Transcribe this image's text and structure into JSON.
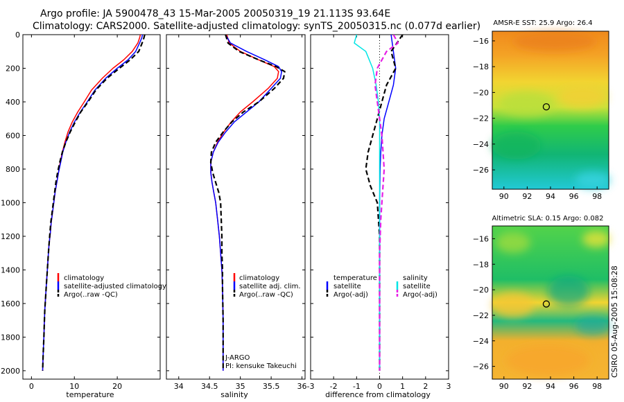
{
  "header": {
    "title_line1": "Argo profile: JA 5900478_43 15-Mar-2005 20050319_19 21.113S 93.64E",
    "title_line2": "Climatology: CARS2000. Satellite-adjusted climatology: synTS_20050315.nc (0.077d earlier)",
    "stamp": "CSIRO 05-Aug-2005 15:08:28"
  },
  "colors": {
    "climatology": "#ff0000",
    "satellite": "#0000ff",
    "argo": "#000000",
    "satellite_salinity": "#00e5e5",
    "argo_adj_salinity": "#e61ee6"
  },
  "chart_data": [
    {
      "type": "line",
      "xlabel": "temperature",
      "ylabel": "",
      "xlim": [
        -2,
        30
      ],
      "ylim": [
        2050,
        0
      ],
      "y_reversed": true,
      "xticks": [
        0,
        10,
        20
      ],
      "yticks": [
        0,
        200,
        400,
        600,
        800,
        1000,
        1200,
        1400,
        1600,
        1800,
        2000
      ],
      "legend": [
        "climatology",
        "satellite-adjusted climatology",
        "Argo(..raw -QC)"
      ],
      "legend_position": "lower-right",
      "series": [
        {
          "name": "climatology",
          "color": "#ff0000",
          "dash": "solid",
          "x": [
            25.4,
            25.2,
            24.8,
            23.5,
            21.5,
            19,
            16.5,
            14,
            12.3,
            10.8,
            9.5,
            8.5,
            7.8,
            7.2,
            6.7,
            6.3,
            5.9,
            5.5,
            5.2,
            4.9,
            4.6,
            4.4,
            4.1,
            3.9,
            3.7,
            3.5,
            3.3,
            3.1,
            3.0,
            2.9,
            2.8,
            2.7,
            2.65,
            2.6
          ],
          "y": [
            0,
            20,
            50,
            100,
            150,
            200,
            260,
            330,
            400,
            460,
            520,
            580,
            640,
            700,
            760,
            820,
            880,
            940,
            1000,
            1060,
            1120,
            1180,
            1250,
            1320,
            1400,
            1480,
            1560,
            1640,
            1720,
            1800,
            1860,
            1920,
            1960,
            2000
          ]
        },
        {
          "name": "satellite-adjusted climatology",
          "color": "#0000ff",
          "dash": "solid",
          "x": [
            25.9,
            25.7,
            25.2,
            24.3,
            22.5,
            20,
            17.3,
            14.8,
            13.0,
            11.4,
            10.0,
            8.9,
            8.0,
            7.3,
            6.8,
            6.3,
            5.9,
            5.5,
            5.2,
            4.9,
            4.6,
            4.4,
            4.1,
            3.9,
            3.7,
            3.5,
            3.3,
            3.1,
            3.0,
            2.9,
            2.8,
            2.7,
            2.65,
            2.6
          ],
          "y": [
            0,
            20,
            50,
            100,
            150,
            200,
            260,
            330,
            400,
            460,
            520,
            580,
            640,
            700,
            760,
            820,
            880,
            940,
            1000,
            1060,
            1120,
            1180,
            1250,
            1320,
            1400,
            1480,
            1560,
            1640,
            1720,
            1800,
            1860,
            1920,
            1960,
            2000
          ]
        },
        {
          "name": "Argo(..raw -QC)",
          "color": "#000000",
          "dash": "dashed",
          "x": [
            26.4,
            26.2,
            25.8,
            25.0,
            23.0,
            20.5,
            17.6,
            15.0,
            13.2,
            11.5,
            10.2,
            9.0,
            8.0,
            7.2,
            6.6,
            6.1,
            5.7,
            5.4,
            5.1,
            4.8,
            4.5,
            4.3,
            4.1,
            3.9,
            3.7,
            3.5,
            3.3,
            3.1,
            3.0,
            2.9,
            2.8,
            2.7,
            2.65,
            2.6
          ],
          "y": [
            0,
            20,
            50,
            100,
            150,
            200,
            260,
            330,
            400,
            460,
            520,
            580,
            640,
            700,
            760,
            820,
            880,
            940,
            1000,
            1060,
            1120,
            1180,
            1250,
            1320,
            1400,
            1480,
            1560,
            1640,
            1720,
            1800,
            1860,
            1920,
            1960,
            2000
          ]
        }
      ]
    },
    {
      "type": "line",
      "xlabel": "salinity",
      "ylabel": "",
      "xlim": [
        33.8,
        36.05
      ],
      "ylim": [
        2050,
        0
      ],
      "y_reversed": true,
      "xticks": [
        34,
        34.5,
        35,
        35.5,
        36
      ],
      "yticks": [],
      "legend": [
        "climatology",
        "satellite adj. clim.",
        "Argo(..raw -QC)"
      ],
      "legend_position": "lower-right",
      "annotations": [
        "J-ARGO",
        "PI: kensuke Takeuchi"
      ],
      "series": [
        {
          "name": "climatology",
          "color": "#ff0000",
          "dash": "solid",
          "x": [
            34.78,
            34.82,
            35.0,
            35.3,
            35.55,
            35.62,
            35.6,
            35.45,
            35.2,
            35.0,
            34.85,
            34.73,
            34.63,
            34.56,
            34.52,
            34.52,
            34.54,
            34.57,
            34.6,
            34.63,
            34.66,
            34.68,
            34.7,
            34.71,
            34.72,
            34.72
          ],
          "y": [
            0,
            50,
            100,
            150,
            190,
            220,
            260,
            320,
            400,
            460,
            520,
            580,
            640,
            700,
            760,
            820,
            880,
            940,
            1000,
            1100,
            1200,
            1300,
            1400,
            1500,
            1700,
            2000
          ]
        },
        {
          "name": "satellite adj. clim.",
          "color": "#0000ff",
          "dash": "solid",
          "x": [
            34.76,
            34.84,
            35.1,
            35.4,
            35.62,
            35.67,
            35.65,
            35.5,
            35.3,
            35.1,
            34.9,
            34.76,
            34.64,
            34.56,
            34.52,
            34.52,
            34.54,
            34.57,
            34.6,
            34.63,
            34.66,
            34.68,
            34.7,
            34.71,
            34.72,
            34.72
          ],
          "y": [
            0,
            50,
            100,
            150,
            190,
            220,
            260,
            320,
            400,
            460,
            520,
            580,
            640,
            700,
            760,
            820,
            880,
            940,
            1000,
            1100,
            1200,
            1300,
            1400,
            1500,
            1700,
            2000
          ]
        },
        {
          "name": "Argo(..raw -QC)",
          "color": "#000000",
          "dash": "dashed",
          "x": [
            34.76,
            34.8,
            34.98,
            35.3,
            35.58,
            35.72,
            35.7,
            35.55,
            35.3,
            35.05,
            34.86,
            34.72,
            34.6,
            34.53,
            34.52,
            34.55,
            34.6,
            34.65,
            34.68,
            34.69,
            34.7,
            34.7,
            34.71,
            34.71,
            34.72,
            34.72
          ],
          "y": [
            0,
            50,
            100,
            150,
            190,
            220,
            260,
            320,
            400,
            460,
            520,
            580,
            640,
            700,
            760,
            820,
            880,
            940,
            1000,
            1100,
            1200,
            1300,
            1400,
            1500,
            1700,
            2000
          ]
        }
      ]
    },
    {
      "type": "line",
      "xlabel": "difference from climatology",
      "ylabel": "",
      "xlim": [
        -3,
        3
      ],
      "ylim": [
        2050,
        0
      ],
      "y_reversed": true,
      "xticks": [
        -3,
        -2,
        -1,
        0,
        1,
        2,
        3
      ],
      "yticks": [],
      "reference_line": {
        "x": 0,
        "style": "dotted"
      },
      "legend_groups": [
        {
          "title": "temperature",
          "entries": [
            "satellite",
            "Argo(-adj)"
          ]
        },
        {
          "title": "salinity",
          "entries": [
            "satellite",
            "Argo(-adj)"
          ]
        }
      ],
      "legend_position": "lower",
      "series": [
        {
          "name": "satellite",
          "group": "temperature",
          "color": "#0000ff",
          "dash": "solid",
          "x": [
            0.5,
            0.6,
            0.7,
            0.6,
            0.4,
            0.2,
            0.1,
            0.05,
            0.02,
            0.0,
            0.0,
            0.0,
            0.0,
            0.0
          ],
          "y": [
            0,
            100,
            200,
            300,
            400,
            500,
            600,
            700,
            800,
            1000,
            1200,
            1500,
            1800,
            2000
          ]
        },
        {
          "name": "Argo(-adj)",
          "group": "temperature",
          "color": "#000000",
          "dash": "dashed",
          "x": [
            1.0,
            0.5,
            0.7,
            0.3,
            0.1,
            -0.1,
            -0.3,
            -0.5,
            -0.6,
            -0.4,
            -0.1,
            0.0,
            0.0,
            0.0
          ],
          "y": [
            0,
            100,
            200,
            300,
            400,
            500,
            600,
            700,
            800,
            900,
            1000,
            1200,
            1500,
            2000
          ]
        },
        {
          "name": "satellite",
          "group": "salinity",
          "color": "#00e5e5",
          "dash": "solid",
          "x": [
            -1.0,
            -1.1,
            -0.6,
            -0.3,
            -0.15,
            -0.05,
            0.0,
            0.0,
            0.0,
            0.0,
            0.0,
            0.0
          ],
          "y": [
            0,
            50,
            100,
            200,
            300,
            400,
            500,
            700,
            1000,
            1300,
            1700,
            2000
          ]
        },
        {
          "name": "Argo(-adj)",
          "group": "salinity",
          "color": "#e61ee6",
          "dash": "dashed",
          "x": [
            0.6,
            0.8,
            0.3,
            -0.1,
            -0.2,
            -0.1,
            0.0,
            0.1,
            0.2,
            0.1,
            0.05,
            0.0,
            0.0,
            0.0
          ],
          "y": [
            0,
            50,
            100,
            200,
            300,
            400,
            500,
            600,
            800,
            1000,
            1100,
            1300,
            1600,
            2000
          ]
        }
      ]
    },
    {
      "type": "heatmap",
      "title": "AMSR-E SST: 25.9 Argo: 26.4",
      "xlabel": "",
      "ylabel": "",
      "xlim": [
        89,
        99
      ],
      "ylim": [
        -27.5,
        -15.25
      ],
      "xticks": [
        90,
        92,
        94,
        96,
        98
      ],
      "yticks": [
        -16,
        -18,
        -20,
        -22,
        -24,
        -26
      ],
      "marker": {
        "lon": 93.64,
        "lat": -21.113,
        "shape": "circle"
      }
    },
    {
      "type": "heatmap",
      "title": "Altimetric SLA: 0.15 Argo: 0.082",
      "xlabel": "",
      "ylabel": "",
      "xlim": [
        89,
        99
      ],
      "ylim": [
        -27,
        -15
      ],
      "xticks": [
        90,
        92,
        94,
        96,
        98
      ],
      "yticks": [
        -16,
        -18,
        -20,
        -22,
        -24,
        -26
      ],
      "marker": {
        "lon": 93.64,
        "lat": -21.113,
        "shape": "circle"
      }
    }
  ]
}
